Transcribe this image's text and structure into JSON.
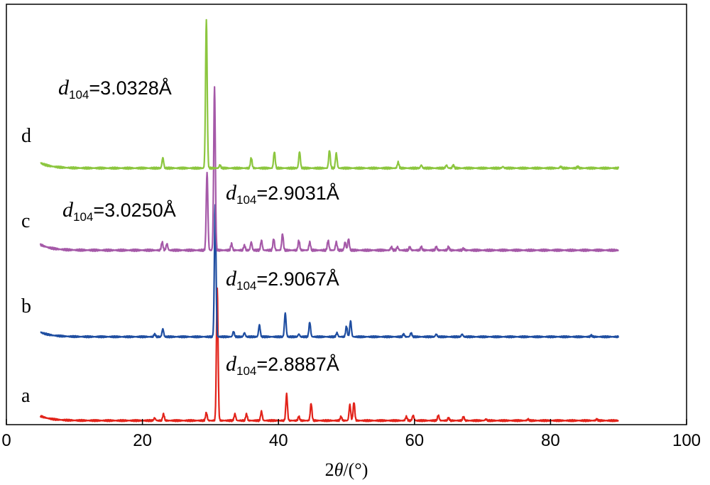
{
  "chart_data": {
    "type": "line",
    "xlabel": "2θ/(°)",
    "xlabel_parts": {
      "prefix": "2",
      "theta": "θ",
      "suffix": "/(°)"
    },
    "xlim": [
      0,
      100
    ],
    "xticks": [
      0,
      20,
      40,
      60,
      80,
      100
    ],
    "yticks_shown": false,
    "grid": false,
    "x_range_measured": [
      5,
      90
    ],
    "series": [
      {
        "name": "a",
        "color": "#e2231a",
        "baseline": 0.02,
        "peaks": [
          [
            21.8,
            0.02
          ],
          [
            23.1,
            0.05
          ],
          [
            29.4,
            0.06
          ],
          [
            31.0,
            1.0
          ],
          [
            33.6,
            0.05
          ],
          [
            35.3,
            0.05
          ],
          [
            37.5,
            0.07
          ],
          [
            41.2,
            0.2
          ],
          [
            43.0,
            0.03
          ],
          [
            44.8,
            0.13
          ],
          [
            49.2,
            0.03
          ],
          [
            50.5,
            0.12
          ],
          [
            51.1,
            0.14
          ],
          [
            58.8,
            0.03
          ],
          [
            59.8,
            0.04
          ],
          [
            63.5,
            0.04
          ],
          [
            65.0,
            0.02
          ],
          [
            67.2,
            0.03
          ],
          [
            70.5,
            0.01
          ],
          [
            76.7,
            0.01
          ],
          [
            86.8,
            0.01
          ]
        ]
      },
      {
        "name": "b",
        "color": "#1f4ea1",
        "baseline": 0.02,
        "peaks": [
          [
            21.8,
            0.02
          ],
          [
            23.0,
            0.06
          ],
          [
            30.7,
            1.0
          ],
          [
            33.4,
            0.04
          ],
          [
            35.0,
            0.03
          ],
          [
            37.2,
            0.09
          ],
          [
            41.0,
            0.18
          ],
          [
            43.0,
            0.02
          ],
          [
            44.6,
            0.11
          ],
          [
            48.6,
            0.03
          ],
          [
            50.0,
            0.08
          ],
          [
            50.6,
            0.12
          ],
          [
            58.4,
            0.02
          ],
          [
            59.5,
            0.03
          ],
          [
            63.2,
            0.02
          ],
          [
            67.0,
            0.02
          ],
          [
            86.0,
            0.01
          ]
        ]
      },
      {
        "name": "c",
        "color": "#a559a8",
        "baseline": 0.02,
        "peaks": [
          [
            22.9,
            0.05
          ],
          [
            23.6,
            0.04
          ],
          [
            29.5,
            0.48
          ],
          [
            30.6,
            1.0
          ],
          [
            33.1,
            0.04
          ],
          [
            35.0,
            0.03
          ],
          [
            36.0,
            0.05
          ],
          [
            37.5,
            0.06
          ],
          [
            39.3,
            0.07
          ],
          [
            40.6,
            0.1
          ],
          [
            43.0,
            0.06
          ],
          [
            44.6,
            0.05
          ],
          [
            47.3,
            0.06
          ],
          [
            48.5,
            0.05
          ],
          [
            49.8,
            0.05
          ],
          [
            50.3,
            0.07
          ],
          [
            56.6,
            0.02
          ],
          [
            57.5,
            0.02
          ],
          [
            59.3,
            0.02
          ],
          [
            61.0,
            0.02
          ],
          [
            63.2,
            0.02
          ],
          [
            65.0,
            0.02
          ],
          [
            67.2,
            0.01
          ]
        ]
      },
      {
        "name": "d",
        "color": "#8cc63f",
        "baseline": 0.02,
        "peaks": [
          [
            23.0,
            0.07
          ],
          [
            29.4,
            1.0
          ],
          [
            31.4,
            0.02
          ],
          [
            36.0,
            0.07
          ],
          [
            39.4,
            0.11
          ],
          [
            43.1,
            0.11
          ],
          [
            47.5,
            0.12
          ],
          [
            48.5,
            0.1
          ],
          [
            57.6,
            0.04
          ],
          [
            61.0,
            0.02
          ],
          [
            64.7,
            0.02
          ],
          [
            65.7,
            0.02
          ],
          [
            73.0,
            0.01
          ],
          [
            81.5,
            0.01
          ],
          [
            84.0,
            0.01
          ]
        ]
      }
    ],
    "annotations": [
      {
        "series": "d",
        "var": "d",
        "sub": "104",
        "value": "=3.0328Å"
      },
      {
        "series": "c",
        "var": "d",
        "sub": "104",
        "value": "=3.0250Å"
      },
      {
        "series": "c",
        "var": "d",
        "sub": "104",
        "value": "=2.9031Å"
      },
      {
        "series": "b",
        "var": "d",
        "sub": "104",
        "value": "=2.9067Å"
      },
      {
        "series": "a",
        "var": "d",
        "sub": "104",
        "value": "=2.8887Å"
      }
    ]
  }
}
